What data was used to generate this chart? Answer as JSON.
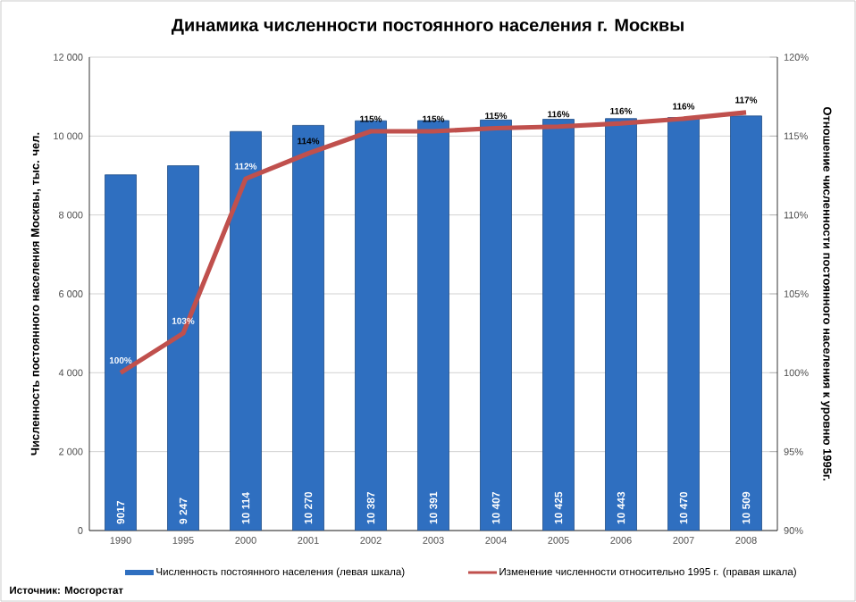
{
  "chart_data": {
    "type": "bar",
    "title": "Динамика численности постоянного населения г. Москвы",
    "ylabel": "Численность постоянного населения Москвы, тыс. чел.",
    "y2label": "Отношение численности постоянного населения к уровню 1995г.",
    "categories": [
      "1990",
      "1995",
      "2000",
      "2001",
      "2002",
      "2003",
      "2004",
      "2005",
      "2006",
      "2007",
      "2008"
    ],
    "series": [
      {
        "name": "Численность постоянного населения (левая шкала)",
        "axis": "y",
        "color": "#2f6fc0",
        "values": [
          9017,
          9247,
          10114,
          10270,
          10387,
          10391,
          10407,
          10425,
          10443,
          10470,
          10509
        ],
        "value_labels": [
          "9017",
          "9 247",
          "10 114",
          "10 270",
          "10 387",
          "10 391",
          "10 407",
          "10 425",
          "10 443",
          "10 470",
          "10 509"
        ]
      },
      {
        "name": "Изменение численности относительно 1995 г. (правая шкала)",
        "type": "line",
        "axis": "y2",
        "color": "#c0504d",
        "values": [
          100,
          102.5,
          112.3,
          113.9,
          115.3,
          115.3,
          115.5,
          115.6,
          115.8,
          116.1,
          116.5
        ],
        "value_labels": [
          "100%",
          "103%",
          "112%",
          "114%",
          "115%",
          "115%",
          "115%",
          "116%",
          "116%",
          "116%",
          "117%"
        ]
      }
    ],
    "ylim": [
      0,
      12000
    ],
    "yticks": [
      0,
      {
        "value": 2000,
        "label": "2 000"
      },
      {
        "value": 4000,
        "label": "4 000"
      },
      {
        "value": 6000,
        "label": "6 000"
      },
      {
        "value": 8000,
        "label": "8 000"
      },
      {
        "value": 10000,
        "label": "10 000"
      },
      {
        "value": 12000,
        "label": "12 000"
      }
    ],
    "y2lim": [
      90,
      120
    ],
    "y2ticks": [
      {
        "value": 90,
        "label": "90%"
      },
      {
        "value": 95,
        "label": "95%"
      },
      {
        "value": 100,
        "label": "100%"
      },
      {
        "value": 105,
        "label": "105%"
      },
      {
        "value": 110,
        "label": "110%"
      },
      {
        "value": 115,
        "label": "115%"
      },
      {
        "value": 120,
        "label": "120%"
      }
    ],
    "grid": "y",
    "legend": "bottom",
    "annotations": [
      "Источник: Мосгорстат"
    ]
  }
}
